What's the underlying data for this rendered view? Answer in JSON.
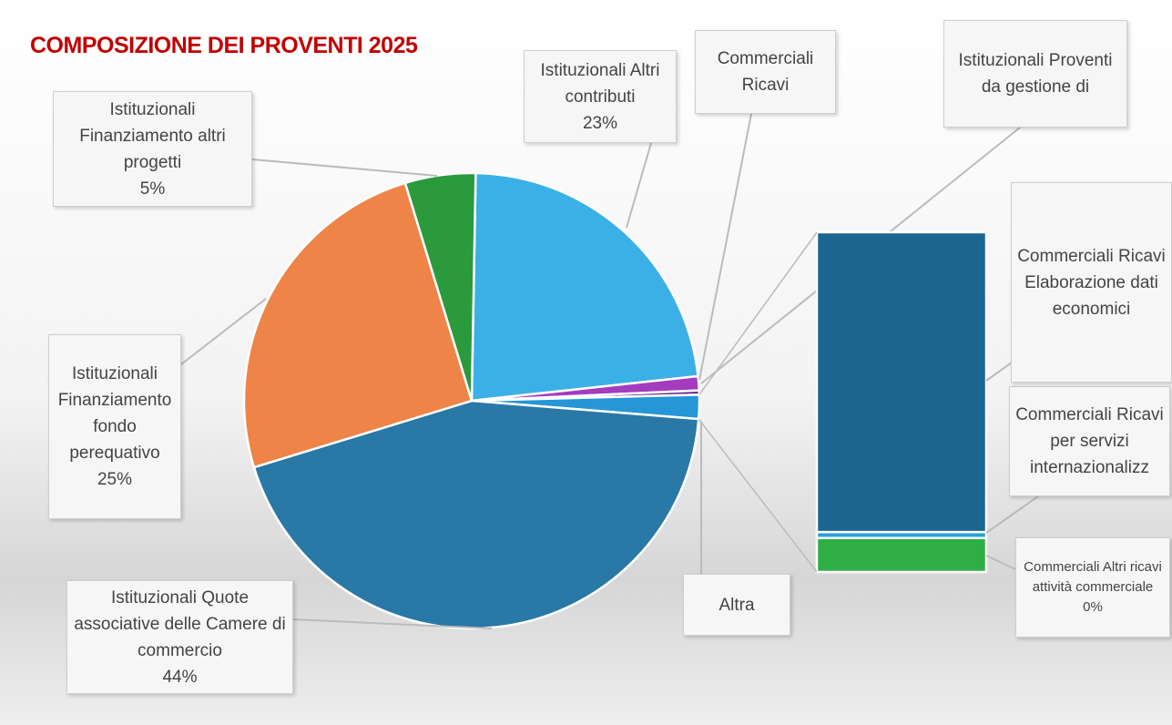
{
  "chart_data": {
    "type": "pie_of_bar",
    "title": "COMPOSIZIONE DEI PROVENTI 2025",
    "categories": [
      "Istituzionali Altri contributi",
      "Commerciali Ricavi",
      "Istituzionali Proventi da gestione di",
      "Altra",
      "Istituzionali Quote associative delle Camere di commercio",
      "Istituzionali Finanziamento fondo perequativo",
      "Istituzionali Finanziamento altri progetti"
    ],
    "values": [
      23,
      1,
      0.3,
      1.7,
      44,
      25,
      5
    ],
    "value_labels": [
      "23%",
      null,
      null,
      null,
      "44%",
      "25%",
      "5%"
    ],
    "colors": [
      "#3bb0e6",
      "#a43cc0",
      "#6d2a8c",
      "#2596d6",
      "#2a78a6",
      "#ee8448",
      "#2a9a3c"
    ],
    "bar": {
      "categories": [
        "Commerciali Altri ricavi attività commerciale",
        "Commerciali Ricavi per servizi internazionalizz",
        "Commerciali Ricavi Elaborazione dati economici"
      ],
      "values": [
        0.17,
        0.03,
        1.5
      ],
      "value_labels": [
        "0%",
        null,
        null
      ],
      "colors": [
        "#2fae45",
        "#2a9fd8",
        "#1a6690"
      ]
    }
  }
}
